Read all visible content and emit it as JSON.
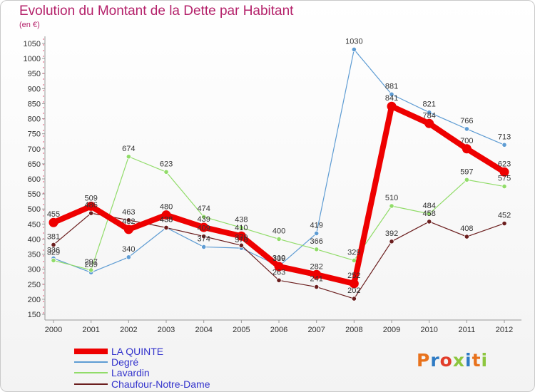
{
  "title": "Evolution du Montant de la Dette par Habitant",
  "unit": "(en €)",
  "logo": {
    "text": "Proxiti",
    "colors": [
      "#e8721c",
      "#2e7bc4",
      "#e23d2a",
      "#8dc63f",
      "#2e7bc4",
      "#e8721c",
      "#8dc63f"
    ]
  },
  "chart_data": {
    "type": "line",
    "title": "Evolution du Montant de la Dette par Habitant",
    "ylabel": "(en €)",
    "xlabel": "",
    "x": [
      "2000",
      "2001",
      "2002",
      "2003",
      "2004",
      "2005",
      "2006",
      "2007",
      "2008",
      "2009",
      "2010",
      "2011",
      "2012"
    ],
    "ylim": [
      150,
      1050
    ],
    "yticks": [
      150,
      200,
      250,
      300,
      350,
      400,
      450,
      500,
      550,
      600,
      650,
      700,
      750,
      800,
      850,
      900,
      950,
      1000,
      1050
    ],
    "grid": false,
    "legend": "bottom-left",
    "series": [
      {
        "name": "LA QUINTE",
        "color": "#ee0000",
        "values": [
          455,
          509,
          432,
          480,
          439,
          410,
          309,
          282,
          252,
          841,
          784,
          700,
          623
        ]
      },
      {
        "name": "Degré",
        "color": "#5e9cd3",
        "values": [
          336,
          289,
          340,
          438,
          374,
          370,
          310,
          419,
          1030,
          881,
          821,
          766,
          713
        ]
      },
      {
        "name": "Lavardin",
        "color": "#91dc69",
        "values": [
          329,
          297,
          674,
          623,
          474,
          438,
          400,
          366,
          329,
          510,
          484,
          597,
          575
        ]
      },
      {
        "name": "Chaufour-Notre-Dame",
        "color": "#6b1e1e",
        "values": [
          381,
          486,
          463,
          438,
          409,
          379,
          263,
          241,
          202,
          392,
          458,
          408,
          452
        ]
      }
    ]
  }
}
